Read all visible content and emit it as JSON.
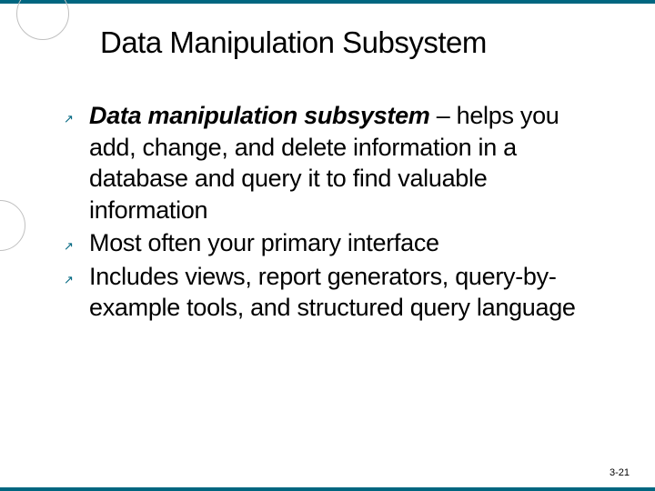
{
  "border_color": "#006680",
  "bullet_color": "#006680",
  "title": "Data Manipulation Subsystem",
  "bullets": [
    {
      "lead": "Data manipulation subsystem",
      "lead_suffix": " – ",
      "rest": "helps you add, change, and delete information in a database and query it to find valuable information"
    },
    {
      "lead": "",
      "lead_suffix": "",
      "rest": "Most often your primary interface"
    },
    {
      "lead": "",
      "lead_suffix": "",
      "rest": "Includes views, report generators, query-by-example tools, and structured query language"
    }
  ],
  "page_number": "3-21",
  "bullet_glyph": "↗"
}
